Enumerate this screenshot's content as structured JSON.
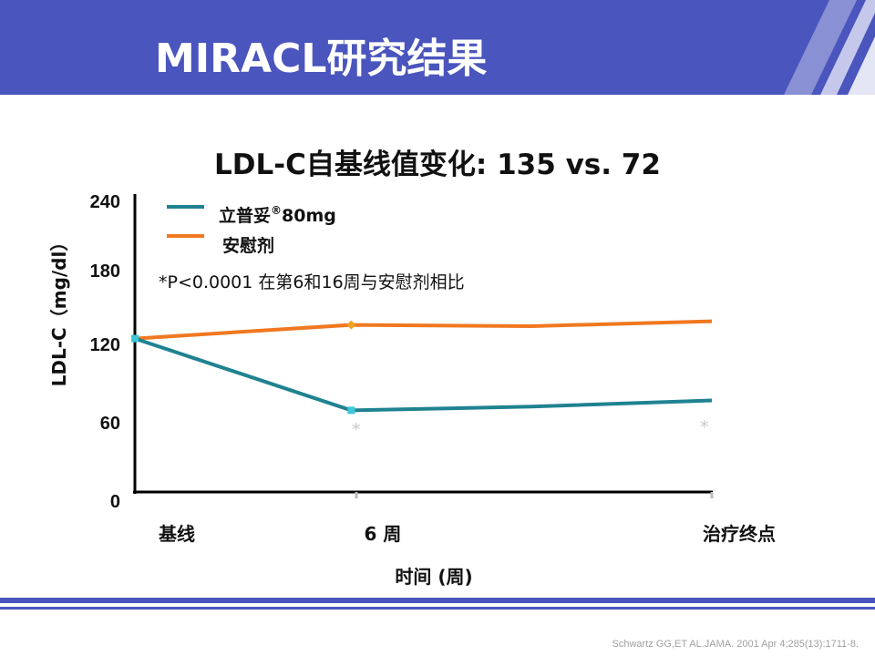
{
  "slide": {
    "title": "MIRACL研究结果",
    "citation": "Schwartz GG,ET AL.JAMA. 2001 Apr 4;285(13):1711-8.",
    "colors": {
      "header": "#4a55bd",
      "footer_lines": "#4a55bd"
    }
  },
  "chart_data": {
    "type": "line",
    "title": "LDL-C自基线值变化: 135 vs. 72",
    "ylabel": "LDL-C（mg/dl）",
    "xlabel": "时间 (周)",
    "ylim": [
      0,
      240
    ],
    "yticks": [
      "0",
      "60",
      "120",
      "180",
      "240"
    ],
    "categories": [
      "基线",
      "6 周",
      "治疗终点"
    ],
    "note": "*P<0.0001 在第6和16周与安慰剂相比",
    "significance_marker": "*",
    "series": [
      {
        "name": "立普妥",
        "name_mark": "®",
        "name_dose": "80mg",
        "color": "#1f8291",
        "x": [
          0,
          6,
          11,
          16
        ],
        "values": [
          124,
          66,
          69,
          74
        ]
      },
      {
        "name": "安慰剂",
        "color": "#f07820",
        "x": [
          0,
          6,
          11,
          16
        ],
        "values": [
          124,
          135,
          134,
          138
        ]
      }
    ]
  }
}
